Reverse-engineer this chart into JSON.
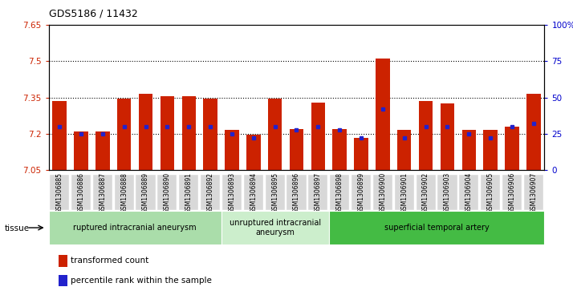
{
  "title": "GDS5186 / 11432",
  "categories": [
    "GSM1306885",
    "GSM1306886",
    "GSM1306887",
    "GSM1306888",
    "GSM1306889",
    "GSM1306890",
    "GSM1306891",
    "GSM1306892",
    "GSM1306893",
    "GSM1306894",
    "GSM1306895",
    "GSM1306896",
    "GSM1306897",
    "GSM1306898",
    "GSM1306899",
    "GSM1306900",
    "GSM1306901",
    "GSM1306902",
    "GSM1306903",
    "GSM1306904",
    "GSM1306905",
    "GSM1306906",
    "GSM1306907"
  ],
  "bar_values": [
    7.335,
    7.21,
    7.21,
    7.345,
    7.365,
    7.355,
    7.355,
    7.345,
    7.215,
    7.195,
    7.345,
    7.22,
    7.33,
    7.22,
    7.185,
    7.51,
    7.215,
    7.335,
    7.325,
    7.215,
    7.215,
    7.23,
    7.365
  ],
  "percentile_values": [
    30,
    25,
    25,
    30,
    30,
    30,
    30,
    30,
    25,
    22,
    30,
    28,
    30,
    28,
    22,
    42,
    22,
    30,
    30,
    25,
    22,
    30,
    32
  ],
  "bar_base": 7.05,
  "ylim_left": [
    7.05,
    7.65
  ],
  "ylim_right": [
    0,
    100
  ],
  "yticks_left": [
    7.05,
    7.2,
    7.35,
    7.5,
    7.65
  ],
  "yticks_right": [
    0,
    25,
    50,
    75,
    100
  ],
  "bar_color": "#CC2200",
  "marker_color": "#2222CC",
  "groups": [
    {
      "label": "ruptured intracranial aneurysm",
      "start": 0,
      "end": 8,
      "color": "#AADDAA"
    },
    {
      "label": "unruptured intracranial\naneurysm",
      "start": 8,
      "end": 13,
      "color": "#CCEECC"
    },
    {
      "label": "superficial temporal artery",
      "start": 13,
      "end": 23,
      "color": "#44BB44"
    }
  ],
  "tissue_label": "tissue",
  "legend_items": [
    {
      "label": "transformed count",
      "color": "#CC2200"
    },
    {
      "label": "percentile rank within the sample",
      "color": "#2222CC"
    }
  ],
  "plot_bg": "#FFFFFF",
  "tick_bg": "#D8D8D8",
  "grid_yticks": [
    7.2,
    7.35,
    7.5
  ]
}
